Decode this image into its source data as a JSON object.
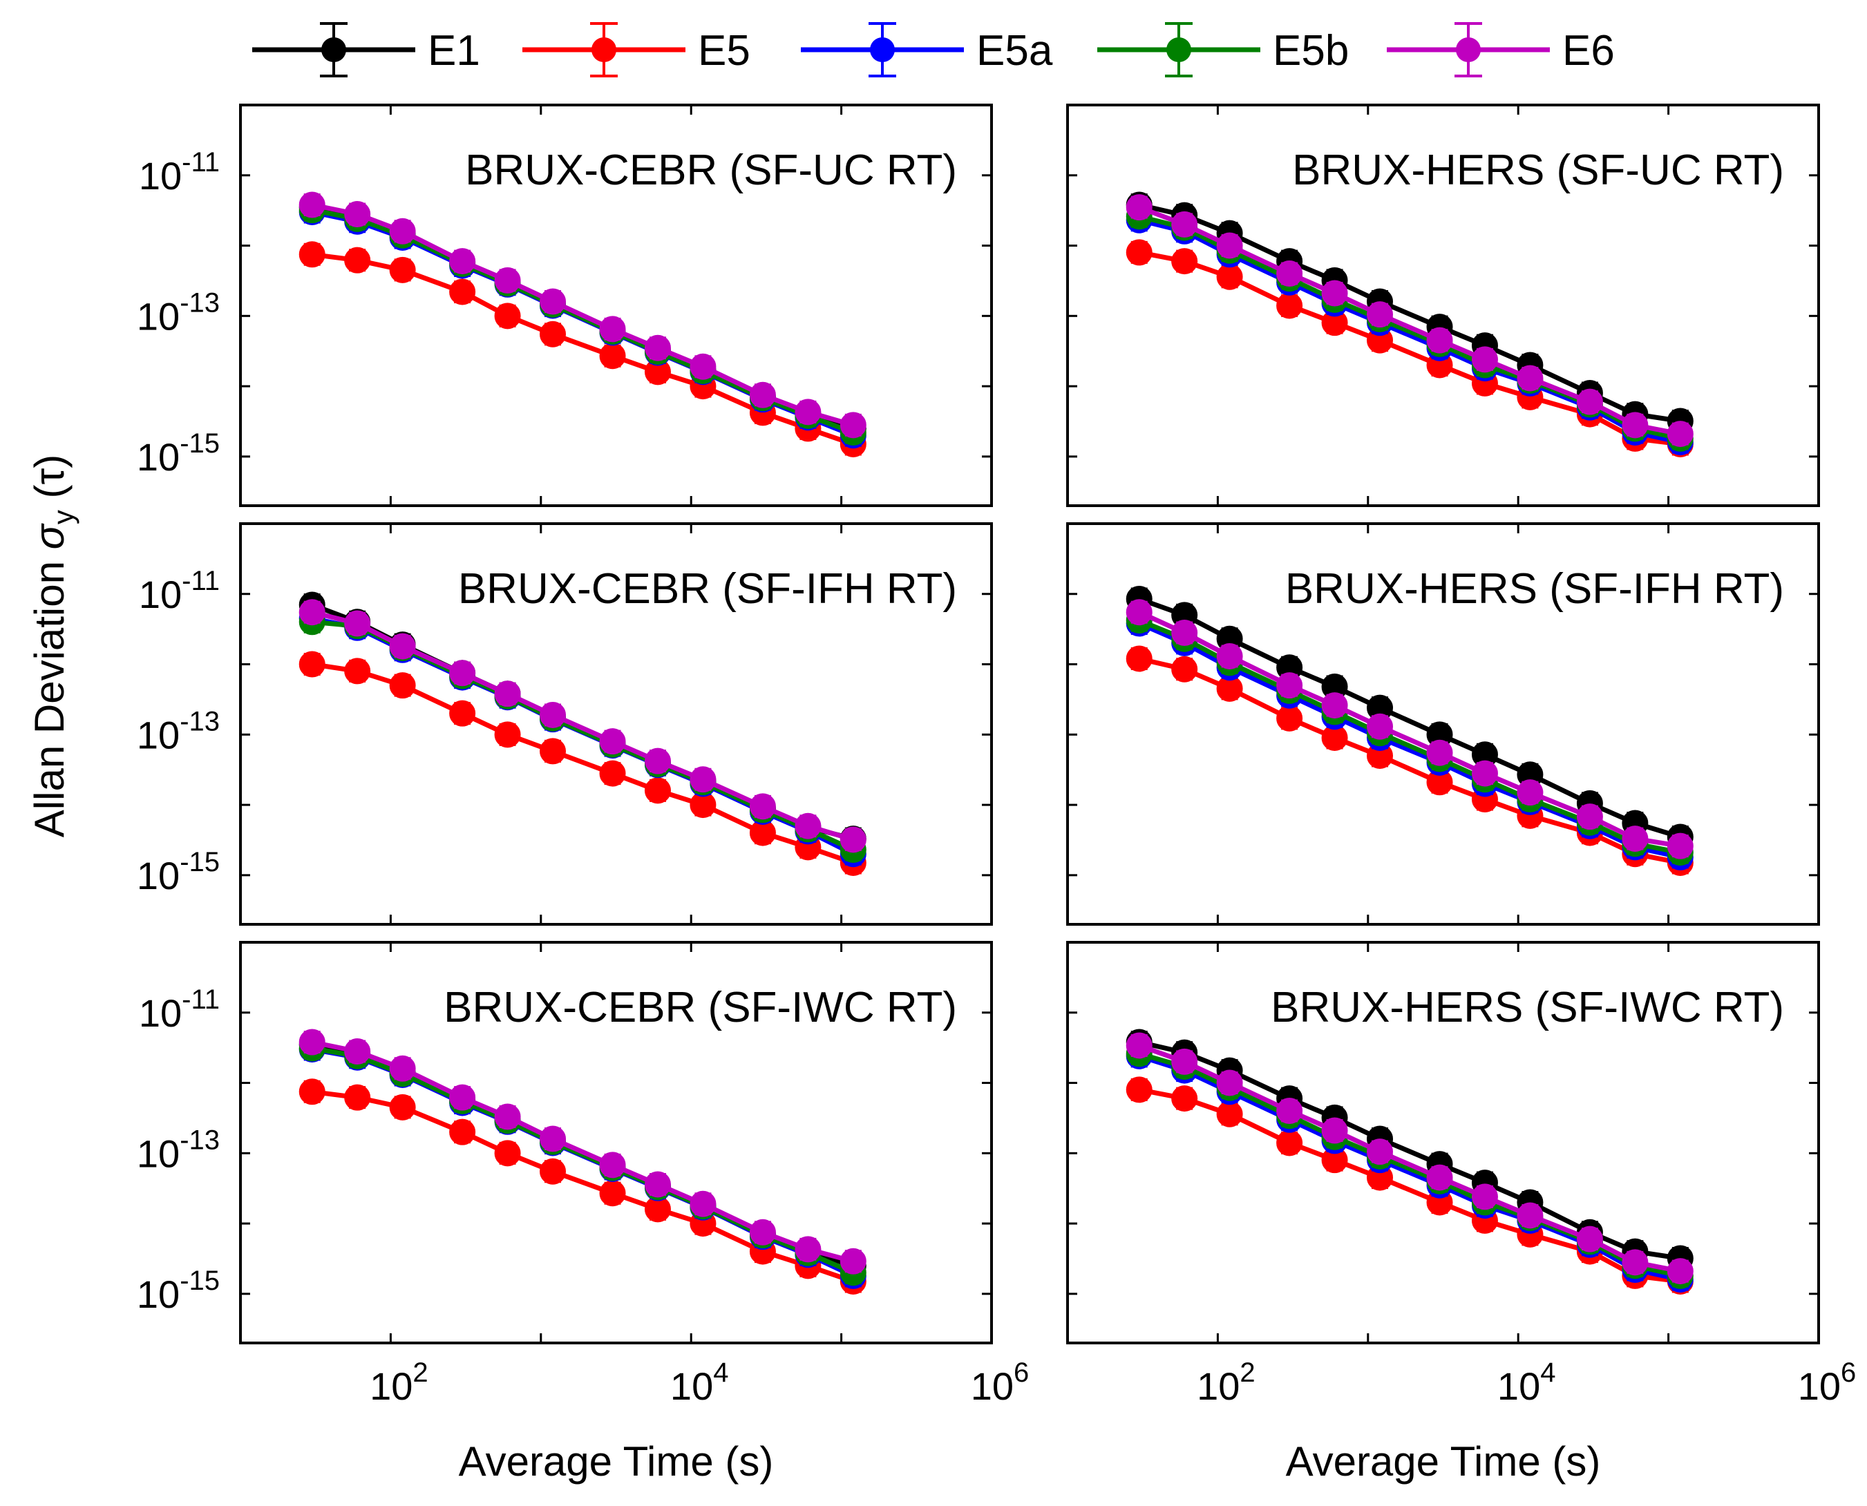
{
  "legend": {
    "position": "top-center",
    "entries": [
      {
        "name": "E1",
        "color": "#000000"
      },
      {
        "name": "E5",
        "color": "#ff0000"
      },
      {
        "name": "E5a",
        "color": "#0000ff"
      },
      {
        "name": "E5b",
        "color": "#008000"
      },
      {
        "name": "E6",
        "color": "#bf00bf"
      }
    ]
  },
  "shared": {
    "ylabel_prefix": "Allan Deviation ",
    "ylabel_sigma": "σ",
    "ylabel_sub": "y",
    "ylabel_tau": " (τ)",
    "xlabel": "Average Time (s)",
    "xticks": [
      {
        "base": "10",
        "exp": "2"
      },
      {
        "base": "10",
        "exp": "4"
      },
      {
        "base": "10",
        "exp": "6"
      }
    ],
    "yticks": [
      {
        "base": "10",
        "exp": "-11"
      },
      {
        "base": "10",
        "exp": "-13"
      },
      {
        "base": "10",
        "exp": "-15"
      }
    ]
  },
  "chart_data": [
    {
      "type": "line",
      "title": "BRUX-CEBR (SF-UC RT)",
      "xscale": "log",
      "yscale": "log",
      "xlim": [
        10,
        1000000
      ],
      "ylim": [
        2e-16,
        1e-10
      ],
      "x": [
        30,
        60,
        120,
        300,
        600,
        1200,
        3000,
        6000,
        12000,
        30000,
        60000,
        120000
      ],
      "series": [
        {
          "name": "E1",
          "values": [
            3.5e-12,
            2.5e-12,
            1.5e-12,
            5.8e-13,
            3e-13,
            1.5e-13,
            6e-14,
            3.2e-14,
            1.7e-14,
            7e-15,
            4e-15,
            2.5e-15
          ]
        },
        {
          "name": "E5",
          "values": [
            7.5e-13,
            6.2e-13,
            4.5e-13,
            2.2e-13,
            1e-13,
            5.5e-14,
            2.7e-14,
            1.6e-14,
            1e-14,
            4.2e-15,
            2.5e-15,
            1.5e-15
          ]
        },
        {
          "name": "E5a",
          "values": [
            3e-12,
            2.2e-12,
            1.3e-12,
            5.2e-13,
            2.8e-13,
            1.4e-13,
            5.8e-14,
            3e-14,
            1.6e-14,
            6.5e-15,
            3.6e-15,
            2e-15
          ]
        },
        {
          "name": "E5b",
          "values": [
            3.2e-12,
            2.4e-12,
            1.4e-12,
            5.5e-13,
            2.9e-13,
            1.45e-13,
            6e-14,
            3.1e-14,
            1.65e-14,
            6.8e-15,
            3.8e-15,
            2.2e-15
          ]
        },
        {
          "name": "E6",
          "values": [
            3.8e-12,
            2.8e-12,
            1.6e-12,
            6e-13,
            3.2e-13,
            1.6e-13,
            6.5e-14,
            3.5e-14,
            1.9e-14,
            7.5e-15,
            4.3e-15,
            2.8e-15
          ]
        }
      ]
    },
    {
      "type": "line",
      "title": "BRUX-HERS (SF-UC RT)",
      "xscale": "log",
      "yscale": "log",
      "xlim": [
        10,
        1000000
      ],
      "ylim": [
        2e-16,
        1e-10
      ],
      "x": [
        30,
        60,
        120,
        300,
        600,
        1200,
        3000,
        6000,
        12000,
        30000,
        60000,
        120000
      ],
      "series": [
        {
          "name": "E1",
          "values": [
            3.8e-12,
            2.7e-12,
            1.5e-12,
            6e-13,
            3.2e-13,
            1.6e-13,
            7e-14,
            3.8e-14,
            2e-14,
            8e-15,
            4e-15,
            3.2e-15
          ]
        },
        {
          "name": "E5",
          "values": [
            8e-13,
            6e-13,
            3.6e-13,
            1.4e-13,
            8e-14,
            4.5e-14,
            2e-14,
            1.1e-14,
            7e-15,
            4e-15,
            1.8e-15,
            1.5e-15
          ]
        },
        {
          "name": "E5a",
          "values": [
            2.3e-12,
            1.6e-12,
            7.5e-13,
            3e-13,
            1.5e-13,
            8e-14,
            3.5e-14,
            1.8e-14,
            1.1e-14,
            5e-15,
            2.2e-15,
            1.6e-15
          ]
        },
        {
          "name": "E5b",
          "values": [
            2.6e-12,
            1.8e-12,
            8.5e-13,
            3.4e-13,
            1.7e-13,
            9e-14,
            4e-14,
            2e-14,
            1.2e-14,
            5.5e-15,
            2.5e-15,
            1.8e-15
          ]
        },
        {
          "name": "E6",
          "values": [
            3.5e-12,
            2e-12,
            1e-12,
            4e-13,
            2.1e-13,
            1.05e-13,
            4.5e-14,
            2.4e-14,
            1.3e-14,
            6e-15,
            2.8e-15,
            2.1e-15
          ]
        }
      ]
    },
    {
      "type": "line",
      "title": "BRUX-CEBR (SF-IFH RT)",
      "xscale": "log",
      "yscale": "log",
      "xlim": [
        10,
        1000000
      ],
      "ylim": [
        2e-16,
        1e-10
      ],
      "x": [
        30,
        60,
        120,
        300,
        600,
        1200,
        3000,
        6000,
        12000,
        30000,
        60000,
        120000
      ],
      "series": [
        {
          "name": "E1",
          "values": [
            7e-12,
            4e-12,
            1.9e-12,
            7.5e-13,
            3.8e-13,
            1.8e-13,
            7.5e-14,
            4e-14,
            2.2e-14,
            9e-15,
            4.8e-15,
            3.3e-15
          ]
        },
        {
          "name": "E5",
          "values": [
            1e-12,
            8e-13,
            5e-13,
            2e-13,
            1e-13,
            5.8e-14,
            2.8e-14,
            1.6e-14,
            1e-14,
            4e-15,
            2.5e-15,
            1.5e-15
          ]
        },
        {
          "name": "E5a",
          "values": [
            4.5e-12,
            3.3e-12,
            1.6e-12,
            6.5e-13,
            3.4e-13,
            1.65e-13,
            7e-14,
            3.7e-14,
            2e-14,
            8e-15,
            4.2e-15,
            2e-15
          ]
        },
        {
          "name": "E5b",
          "values": [
            4e-12,
            3.5e-12,
            1.7e-12,
            6.8e-13,
            3.5e-13,
            1.7e-13,
            7.2e-14,
            3.8e-14,
            2.1e-14,
            8.5e-15,
            4.5e-15,
            2.3e-15
          ]
        },
        {
          "name": "E6",
          "values": [
            5.5e-12,
            3.8e-12,
            1.8e-12,
            7.5e-13,
            3.8e-13,
            1.9e-13,
            8e-14,
            4.2e-14,
            2.3e-14,
            9.5e-15,
            5e-15,
            3.2e-15
          ]
        }
      ]
    },
    {
      "type": "line",
      "title": "BRUX-HERS (SF-IFH RT)",
      "xscale": "log",
      "yscale": "log",
      "xlim": [
        10,
        1000000
      ],
      "ylim": [
        2e-16,
        1e-10
      ],
      "x": [
        30,
        60,
        120,
        300,
        600,
        1200,
        3000,
        6000,
        12000,
        30000,
        60000,
        120000
      ],
      "series": [
        {
          "name": "E1",
          "values": [
            8.5e-12,
            5e-12,
            2.3e-12,
            9e-13,
            4.8e-13,
            2.4e-13,
            1e-13,
            5.2e-14,
            2.7e-14,
            1.05e-14,
            5.5e-15,
            3.5e-15
          ]
        },
        {
          "name": "E5",
          "values": [
            1.2e-12,
            8.5e-13,
            4.5e-13,
            1.7e-13,
            9e-14,
            5e-14,
            2.1e-14,
            1.2e-14,
            7e-15,
            4e-15,
            2e-15,
            1.5e-15
          ]
        },
        {
          "name": "E5a",
          "values": [
            3.8e-12,
            2e-12,
            9e-13,
            3.6e-13,
            1.8e-13,
            9e-14,
            4e-14,
            2e-14,
            1.1e-14,
            5e-15,
            2.5e-15,
            1.8e-15
          ]
        },
        {
          "name": "E5b",
          "values": [
            4.2e-12,
            2.3e-12,
            1.05e-12,
            4.2e-13,
            2.1e-13,
            1.05e-13,
            4.5e-14,
            2.3e-14,
            1.2e-14,
            5.6e-15,
            2.8e-15,
            2.1e-15
          ]
        },
        {
          "name": "E6",
          "values": [
            5.5e-12,
            2.8e-12,
            1.3e-12,
            5e-13,
            2.6e-13,
            1.3e-13,
            5.5e-14,
            2.8e-14,
            1.5e-14,
            6.8e-15,
            3.3e-15,
            2.6e-15
          ]
        }
      ]
    },
    {
      "type": "line",
      "title": "BRUX-CEBR (SF-IWC RT)",
      "xscale": "log",
      "yscale": "log",
      "xlim": [
        10,
        1000000
      ],
      "ylim": [
        2e-16,
        1e-10
      ],
      "x": [
        30,
        60,
        120,
        300,
        600,
        1200,
        3000,
        6000,
        12000,
        30000,
        60000,
        120000
      ],
      "series": [
        {
          "name": "E1",
          "values": [
            3.5e-12,
            2.6e-12,
            1.4e-12,
            5.8e-13,
            3e-13,
            1.5e-13,
            6.5e-14,
            3.4e-14,
            1.8e-14,
            7e-15,
            4e-15,
            2.5e-15
          ]
        },
        {
          "name": "E5",
          "values": [
            7.5e-13,
            6.2e-13,
            4.5e-13,
            2e-13,
            1e-13,
            5.5e-14,
            2.7e-14,
            1.6e-14,
            1e-14,
            4e-15,
            2.5e-15,
            1.5e-15
          ]
        },
        {
          "name": "E5a",
          "values": [
            3e-12,
            2.3e-12,
            1.3e-12,
            5.2e-13,
            2.8e-13,
            1.4e-13,
            6e-14,
            3.2e-14,
            1.7e-14,
            6.5e-15,
            3.6e-15,
            1.8e-15
          ]
        },
        {
          "name": "E5b",
          "values": [
            3.1e-12,
            2.4e-12,
            1.35e-12,
            5.5e-13,
            2.9e-13,
            1.45e-13,
            6.2e-14,
            3.3e-14,
            1.75e-14,
            6.8e-15,
            3.8e-15,
            2e-15
          ]
        },
        {
          "name": "E6",
          "values": [
            3.8e-12,
            2.8e-12,
            1.6e-12,
            6.2e-13,
            3.3e-13,
            1.6e-13,
            6.8e-14,
            3.6e-14,
            1.9e-14,
            7.5e-15,
            4.3e-15,
            2.9e-15
          ]
        }
      ]
    },
    {
      "type": "line",
      "title": "BRUX-HERS (SF-IWC RT)",
      "xscale": "log",
      "yscale": "log",
      "xlim": [
        10,
        1000000
      ],
      "ylim": [
        2e-16,
        1e-10
      ],
      "x": [
        30,
        60,
        120,
        300,
        600,
        1200,
        3000,
        6000,
        12000,
        30000,
        60000,
        120000
      ],
      "series": [
        {
          "name": "E1",
          "values": [
            3.8e-12,
            2.7e-12,
            1.5e-12,
            6e-13,
            3.2e-13,
            1.6e-13,
            7e-14,
            3.8e-14,
            2e-14,
            7.5e-15,
            4e-15,
            3.2e-15
          ]
        },
        {
          "name": "E5",
          "values": [
            8e-13,
            6e-13,
            3.6e-13,
            1.4e-13,
            8e-14,
            4.5e-14,
            2e-14,
            1.1e-14,
            7e-15,
            4e-15,
            1.8e-15,
            1.5e-15
          ]
        },
        {
          "name": "E5a",
          "values": [
            2.4e-12,
            1.5e-12,
            7.5e-13,
            3e-13,
            1.5e-13,
            8e-14,
            3.5e-14,
            1.8e-14,
            1.1e-14,
            5e-15,
            2.2e-15,
            1.6e-15
          ]
        },
        {
          "name": "E5b",
          "values": [
            2.6e-12,
            1.7e-12,
            8.5e-13,
            3.4e-13,
            1.7e-13,
            9e-14,
            4e-14,
            2e-14,
            1.2e-14,
            5.5e-15,
            2.5e-15,
            1.8e-15
          ]
        },
        {
          "name": "E6",
          "values": [
            3.4e-12,
            2e-12,
            1e-12,
            4e-13,
            2.1e-13,
            1.05e-13,
            4.5e-14,
            2.4e-14,
            1.3e-14,
            6e-15,
            2.8e-15,
            2.1e-15
          ]
        }
      ]
    }
  ]
}
